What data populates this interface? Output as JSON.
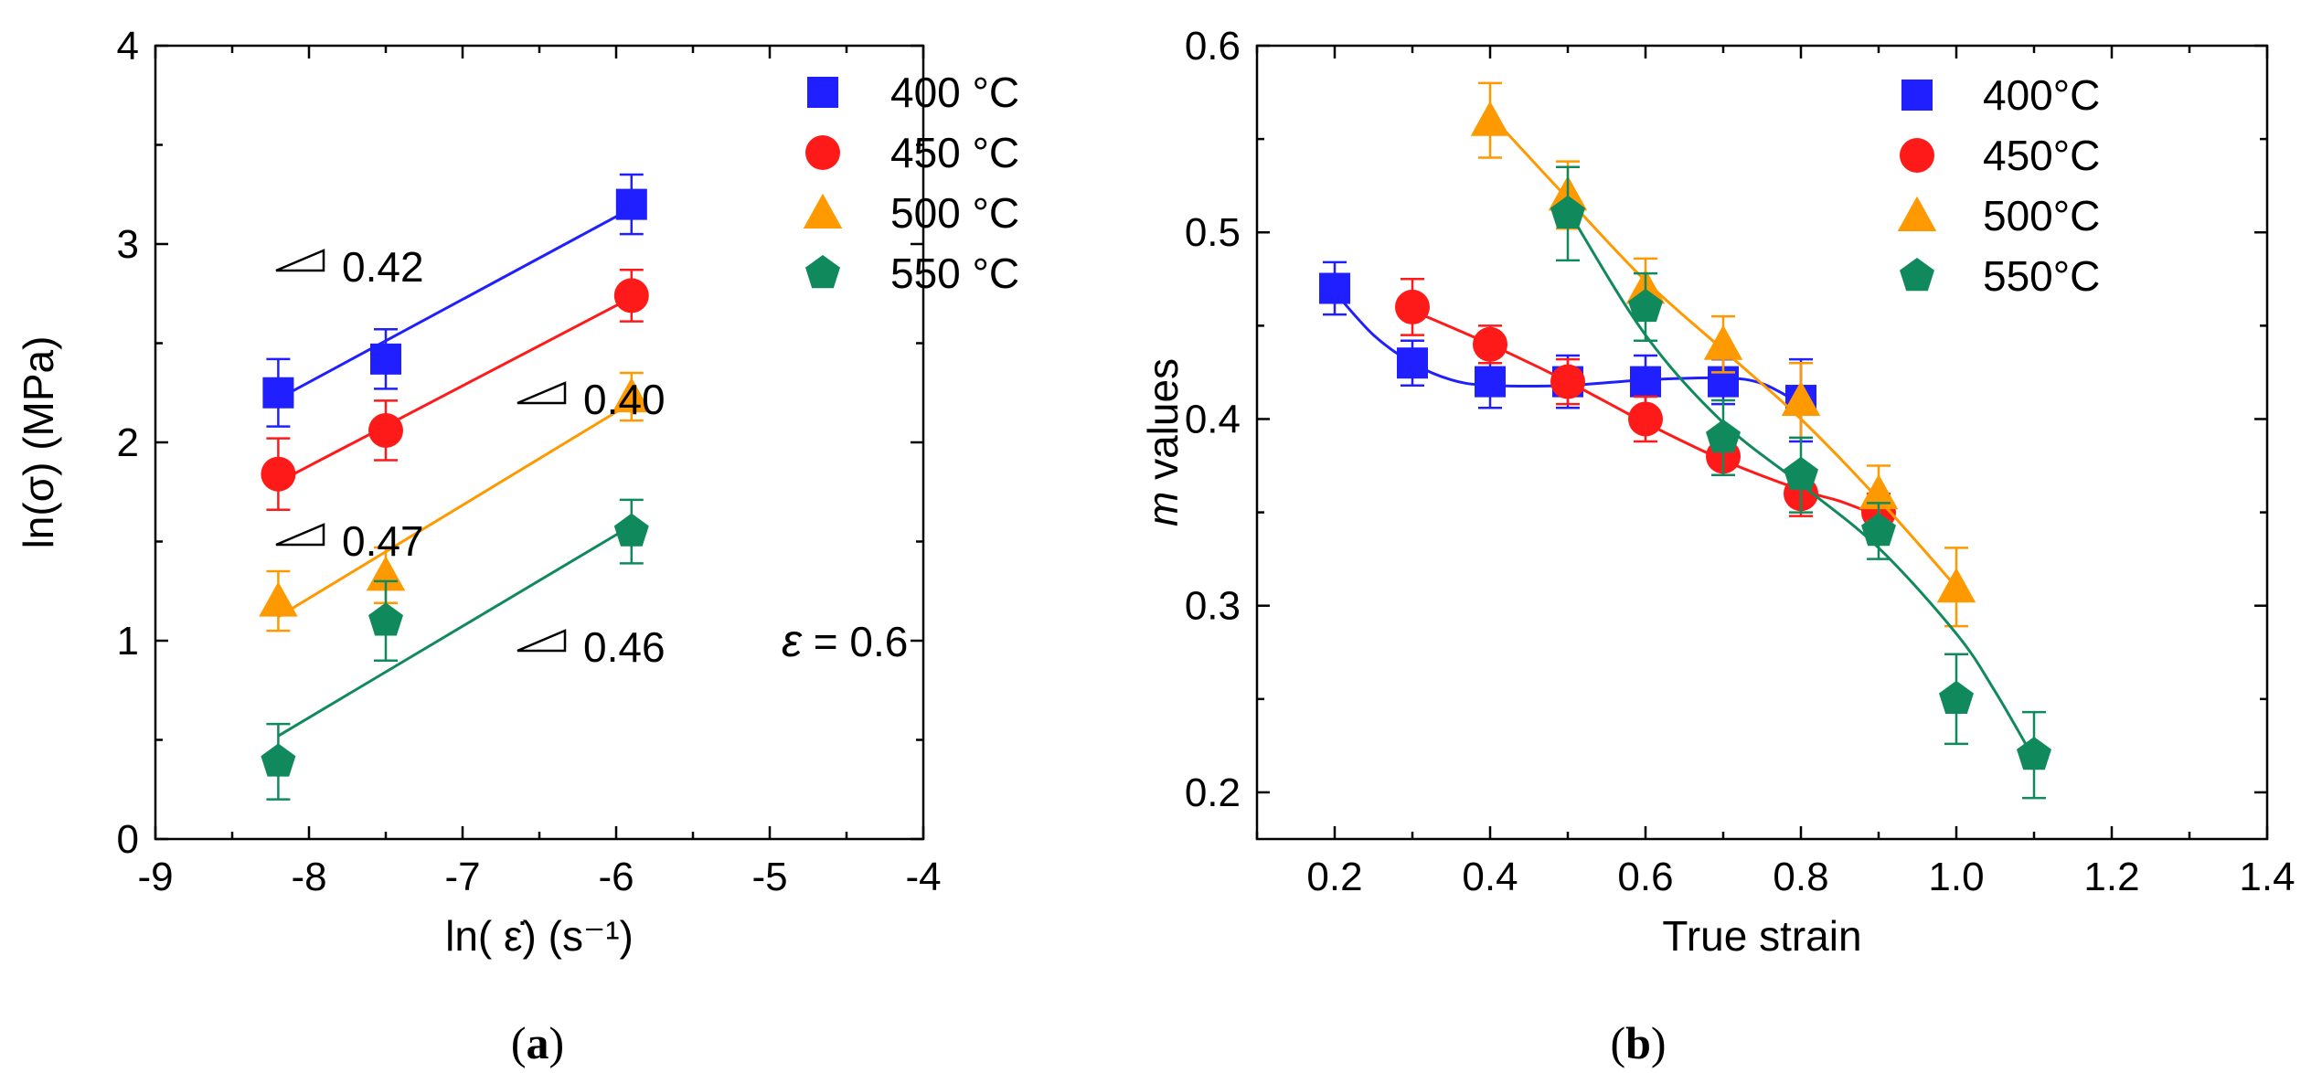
{
  "chart_data": [
    {
      "panel": "(a)",
      "type": "scatter",
      "xlabel": "ln( ε̇) (s⁻¹)",
      "ylabel": "ln(σ) (MPa)",
      "xlim": [
        -9,
        -4
      ],
      "ylim": [
        0,
        4
      ],
      "xticks": [
        -9,
        -8,
        -7,
        -6,
        -5,
        -4
      ],
      "yticks": [
        0,
        1,
        2,
        3,
        4
      ],
      "legend_position": "top-right",
      "annotation": "ε = 0.6",
      "slope_labels": [
        "0.42",
        "0.40",
        "0.47",
        "0.46"
      ],
      "series": [
        {
          "name": "400 °C",
          "color": "#1f1fff",
          "marker": "square",
          "x": [
            -8.2,
            -7.5,
            -5.9
          ],
          "y": [
            2.25,
            2.42,
            3.2
          ],
          "err": [
            0.17,
            0.15,
            0.15
          ],
          "fit": [
            [
              -8.2,
              2.22
            ],
            [
              -5.9,
              3.18
            ]
          ],
          "slope": "0.42"
        },
        {
          "name": "450 °C",
          "color": "#ff1a1a",
          "marker": "circle",
          "x": [
            -8.2,
            -7.5,
            -5.9
          ],
          "y": [
            1.84,
            2.06,
            2.74
          ],
          "err": [
            0.18,
            0.15,
            0.13
          ],
          "fit": [
            [
              -8.2,
              1.8
            ],
            [
              -5.9,
              2.73
            ]
          ],
          "slope": "0.40"
        },
        {
          "name": "500 °C",
          "color": "#ff9900",
          "marker": "triangle",
          "x": [
            -8.2,
            -7.5,
            -5.9
          ],
          "y": [
            1.2,
            1.33,
            2.23
          ],
          "err": [
            0.15,
            0.14,
            0.12
          ],
          "fit": [
            [
              -8.2,
              1.12
            ],
            [
              -5.9,
              2.2
            ]
          ],
          "slope": "0.47"
        },
        {
          "name": "550 °C",
          "color": "#108a5c",
          "marker": "pentagon",
          "x": [
            -8.2,
            -7.5,
            -5.9
          ],
          "y": [
            0.39,
            1.1,
            1.55
          ],
          "err": [
            0.19,
            0.2,
            0.16
          ],
          "fit": [
            [
              -8.2,
              0.52
            ],
            [
              -5.9,
              1.58
            ]
          ],
          "slope": "0.46"
        }
      ]
    },
    {
      "panel": "(b)",
      "type": "scatter",
      "xlabel": "True strain",
      "ylabel": "m values",
      "xlim": [
        0.1,
        1.4
      ],
      "ylim": [
        0.175,
        0.6
      ],
      "xticks": [
        0.2,
        0.4,
        0.6,
        0.8,
        1.0,
        1.2,
        1.4
      ],
      "xticklabels": [
        "0.2",
        "0.4",
        "0.6",
        "0.8",
        "1.0",
        "1.2",
        "1.4"
      ],
      "yticks": [
        0.2,
        0.3,
        0.4,
        0.5,
        0.6
      ],
      "yticklabels": [
        "0.2",
        "0.3",
        "0.4",
        "0.5",
        "0.6"
      ],
      "legend_position": "top-right",
      "series": [
        {
          "name": "400°C",
          "color": "#1f1fff",
          "marker": "square",
          "x": [
            0.2,
            0.3,
            0.4,
            0.5,
            0.6,
            0.7,
            0.8
          ],
          "y": [
            0.47,
            0.43,
            0.42,
            0.42,
            0.42,
            0.42,
            0.41
          ],
          "err": [
            0.014,
            0.012,
            0.014,
            0.014,
            0.014,
            0.012,
            0.022
          ],
          "curve": [
            [
              0.2,
              0.468
            ],
            [
              0.25,
              0.445
            ],
            [
              0.3,
              0.43
            ],
            [
              0.35,
              0.421
            ],
            [
              0.4,
              0.418
            ],
            [
              0.5,
              0.418
            ],
            [
              0.6,
              0.421
            ],
            [
              0.7,
              0.422
            ],
            [
              0.75,
              0.419
            ],
            [
              0.8,
              0.408
            ]
          ]
        },
        {
          "name": "450°C",
          "color": "#ff1a1a",
          "marker": "circle",
          "x": [
            0.3,
            0.4,
            0.5,
            0.6,
            0.7,
            0.8,
            0.9
          ],
          "y": [
            0.46,
            0.44,
            0.42,
            0.4,
            0.38,
            0.36,
            0.35
          ],
          "err": [
            0.015,
            0.01,
            0.012,
            0.012,
            0.01,
            0.012,
            0.01
          ],
          "curve": [
            [
              0.3,
              0.458
            ],
            [
              0.4,
              0.44
            ],
            [
              0.5,
              0.42
            ],
            [
              0.6,
              0.398
            ],
            [
              0.7,
              0.378
            ],
            [
              0.8,
              0.362
            ],
            [
              0.85,
              0.356
            ],
            [
              0.9,
              0.348
            ]
          ]
        },
        {
          "name": "500°C",
          "color": "#ff9900",
          "marker": "triangle",
          "x": [
            0.4,
            0.5,
            0.6,
            0.7,
            0.8,
            0.9,
            1.0
          ],
          "y": [
            0.56,
            0.52,
            0.47,
            0.44,
            0.41,
            0.36,
            0.31
          ],
          "err": [
            0.02,
            0.018,
            0.016,
            0.015,
            0.02,
            0.015,
            0.021
          ],
          "curve": [
            [
              0.4,
              0.563
            ],
            [
              0.5,
              0.518
            ],
            [
              0.6,
              0.474
            ],
            [
              0.7,
              0.437
            ],
            [
              0.8,
              0.4
            ],
            [
              0.9,
              0.357
            ],
            [
              1.0,
              0.31
            ]
          ]
        },
        {
          "name": "550°C",
          "color": "#108a5c",
          "marker": "pentagon",
          "x": [
            0.5,
            0.6,
            0.7,
            0.8,
            0.9,
            1.0,
            1.1
          ],
          "y": [
            0.51,
            0.46,
            0.39,
            0.37,
            0.34,
            0.25,
            0.22
          ],
          "err": [
            0.025,
            0.018,
            0.02,
            0.02,
            0.015,
            0.024,
            0.023
          ],
          "curve": [
            [
              0.5,
              0.512
            ],
            [
              0.6,
              0.445
            ],
            [
              0.7,
              0.398
            ],
            [
              0.8,
              0.365
            ],
            [
              0.9,
              0.331
            ],
            [
              1.0,
              0.285
            ],
            [
              1.05,
              0.254
            ],
            [
              1.1,
              0.218
            ]
          ]
        }
      ]
    }
  ],
  "captions": [
    "(a)",
    "(b)"
  ]
}
